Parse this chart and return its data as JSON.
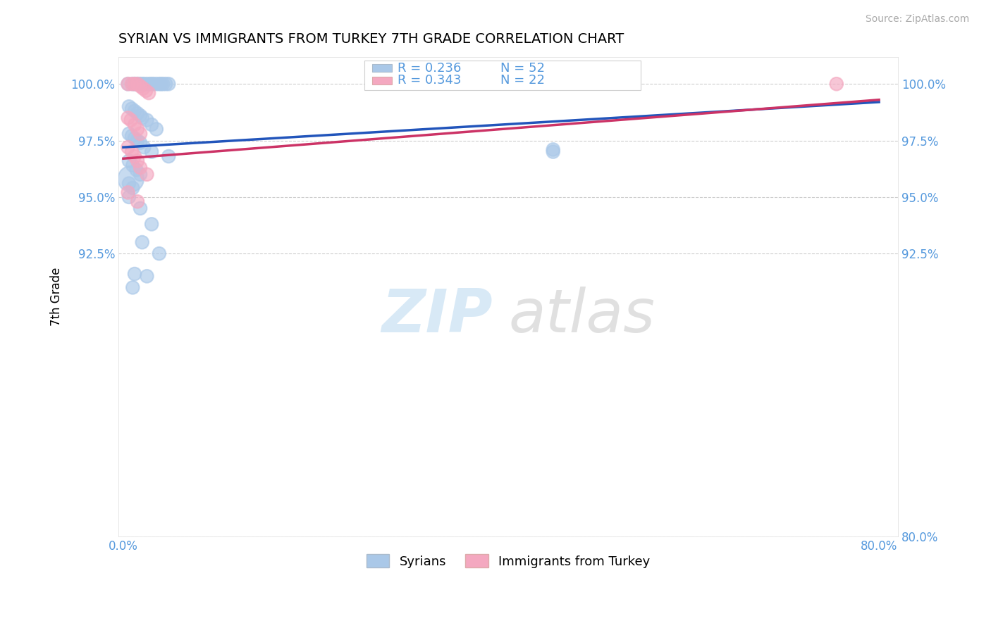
{
  "title": "SYRIAN VS IMMIGRANTS FROM TURKEY 7TH GRADE CORRELATION CHART",
  "source": "Source: ZipAtlas.com",
  "ylabel": "7th Grade",
  "xlim_min": -0.005,
  "xlim_max": 0.82,
  "ylim_min": 0.8,
  "ylim_max": 1.012,
  "xtick_positions": [
    0.0,
    0.1,
    0.2,
    0.3,
    0.4,
    0.5,
    0.6,
    0.7,
    0.8
  ],
  "xtick_labels": [
    "0.0%",
    "",
    "",
    "",
    "",
    "",
    "",
    "",
    "80.0%"
  ],
  "ytick_positions": [
    0.8,
    0.925,
    0.95,
    0.975,
    1.0
  ],
  "ytick_labels_right": [
    "80.0%",
    "92.5%",
    "95.0%",
    "97.5%",
    "100.0%"
  ],
  "ytick_labels_left": [
    "",
    "92.5%",
    "95.0%",
    "97.5%",
    "100.0%"
  ],
  "legend_labels": [
    "Syrians",
    "Immigrants from Turkey"
  ],
  "r_syrians": 0.236,
  "n_syrians": 52,
  "r_turkey": 0.343,
  "n_turkey": 22,
  "syrians_color": "#aac8e8",
  "turkey_color": "#f4a8c0",
  "syrians_line_color": "#2255bb",
  "turkey_line_color": "#cc3366",
  "tick_color": "#5599dd",
  "watermark_zip": "ZIP",
  "watermark_atlas": "atlas",
  "syrians_x": [
    0.005,
    0.01,
    0.012,
    0.014,
    0.016,
    0.018,
    0.02,
    0.022,
    0.025,
    0.028,
    0.03,
    0.032,
    0.035,
    0.038,
    0.04,
    0.042,
    0.045,
    0.048,
    0.006,
    0.009,
    0.012,
    0.015,
    0.018,
    0.02,
    0.025,
    0.03,
    0.035,
    0.006,
    0.009,
    0.012,
    0.015,
    0.018,
    0.022,
    0.03,
    0.048,
    0.006,
    0.01,
    0.014,
    0.018,
    0.006,
    0.01,
    0.006,
    0.018,
    0.03,
    0.008,
    0.02,
    0.038,
    0.012,
    0.025,
    0.01,
    0.455,
    0.455
  ],
  "syrians_y": [
    1.0,
    1.0,
    1.0,
    1.0,
    1.0,
    1.0,
    1.0,
    1.0,
    1.0,
    1.0,
    1.0,
    1.0,
    1.0,
    1.0,
    1.0,
    1.0,
    1.0,
    1.0,
    0.99,
    0.989,
    0.988,
    0.987,
    0.986,
    0.985,
    0.984,
    0.982,
    0.98,
    0.978,
    0.977,
    0.976,
    0.975,
    0.974,
    0.972,
    0.97,
    0.968,
    0.966,
    0.964,
    0.962,
    0.96,
    0.956,
    0.954,
    0.95,
    0.945,
    0.938,
    0.958,
    0.93,
    0.925,
    0.916,
    0.915,
    0.91,
    0.97,
    0.971
  ],
  "syrians_sizes": [
    180,
    180,
    180,
    180,
    180,
    180,
    180,
    180,
    180,
    180,
    180,
    180,
    180,
    180,
    180,
    180,
    180,
    180,
    180,
    180,
    180,
    180,
    180,
    180,
    180,
    180,
    180,
    180,
    180,
    180,
    180,
    180,
    180,
    180,
    180,
    180,
    180,
    180,
    180,
    180,
    180,
    180,
    180,
    180,
    700,
    180,
    180,
    180,
    180,
    180,
    180,
    180
  ],
  "turkey_x": [
    0.005,
    0.009,
    0.012,
    0.015,
    0.018,
    0.021,
    0.024,
    0.027,
    0.005,
    0.008,
    0.012,
    0.015,
    0.018,
    0.005,
    0.009,
    0.012,
    0.015,
    0.018,
    0.025,
    0.005,
    0.015,
    0.755
  ],
  "turkey_y": [
    1.0,
    1.0,
    1.0,
    1.0,
    0.999,
    0.998,
    0.997,
    0.996,
    0.985,
    0.984,
    0.982,
    0.98,
    0.978,
    0.972,
    0.97,
    0.968,
    0.966,
    0.963,
    0.96,
    0.952,
    0.948,
    1.0
  ],
  "turkey_sizes": [
    180,
    180,
    180,
    180,
    180,
    180,
    180,
    180,
    180,
    180,
    180,
    180,
    180,
    180,
    180,
    180,
    180,
    180,
    180,
    180,
    180,
    180
  ]
}
